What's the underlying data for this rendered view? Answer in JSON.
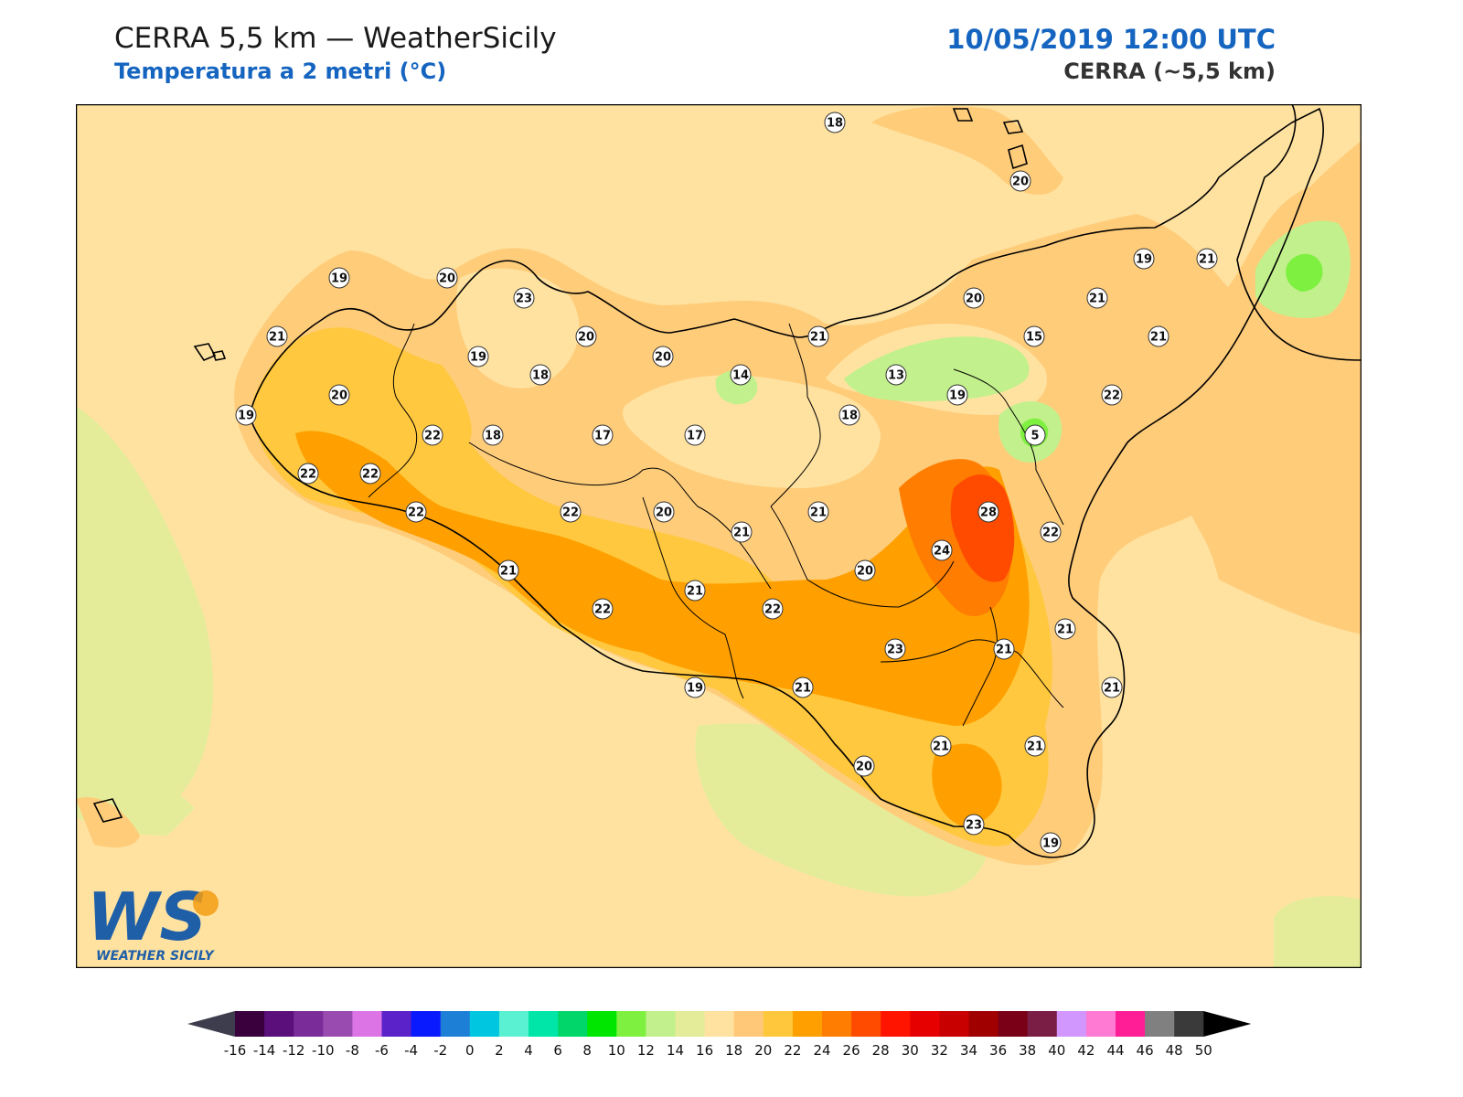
{
  "header": {
    "title": "CERRA 5,5 km — WeatherSicily",
    "subtitle": "Temperatura a 2 metri (°C)",
    "datetime": "10/05/2019 12:00 UTC",
    "model": "CERRA (~5,5 km)"
  },
  "logo": {
    "letters": "WS",
    "name": "WEATHER SICILY",
    "colors": {
      "w": "#1f5fa8",
      "s": "#f39c12",
      "text": "#1f5fa8"
    }
  },
  "colorbar": {
    "ticks": [
      "-16",
      "-14",
      "-12",
      "-10",
      "-8",
      "-6",
      "-4",
      "-2",
      "0",
      "2",
      "4",
      "6",
      "8",
      "10",
      "12",
      "14",
      "16",
      "18",
      "20",
      "22",
      "24",
      "26",
      "28",
      "30",
      "32",
      "34",
      "36",
      "38",
      "40",
      "42",
      "44",
      "46",
      "48",
      "50"
    ],
    "under_color": "#3d3d4d",
    "over_color": "#000000",
    "colors": [
      "#3a003e",
      "#5a0f7a",
      "#7a2c99",
      "#9a4bb0",
      "#dc74e6",
      "#5a22c8",
      "#0a1aff",
      "#1e7fd6",
      "#00c6e0",
      "#5af0d2",
      "#00e6a8",
      "#00d66a",
      "#00e600",
      "#7ef040",
      "#c2f08c",
      "#e4ec9a",
      "#ffe1a0",
      "#ffc878",
      "#ffc83c",
      "#ffa000",
      "#ff7d00",
      "#ff4b00",
      "#ff1400",
      "#e60000",
      "#c80000",
      "#a00000",
      "#7a0018",
      "#7a1e46",
      "#d296ff",
      "#ff7ad2",
      "#ff1e96",
      "#808080",
      "#3a3a3a"
    ]
  },
  "map": {
    "colors": {
      "sea": "#ffe2a0",
      "sea_cool": "#e4ec9a",
      "t18": "#ffe2a0",
      "t20": "#ffcc7a",
      "t22": "#ffc83e",
      "t24": "#ffa000",
      "t26": "#ff7d00",
      "t28": "#ff4b00",
      "t12": "#c2f08c",
      "t10": "#7ef040",
      "border": "#000000"
    },
    "stations": [
      {
        "v": "18"
      },
      {
        "v": "20"
      },
      {
        "v": "19"
      },
      {
        "v": "20"
      },
      {
        "v": "23"
      },
      {
        "v": "21"
      },
      {
        "v": "20"
      },
      {
        "v": "21"
      },
      {
        "v": "19"
      },
      {
        "v": "21"
      },
      {
        "v": "20"
      },
      {
        "v": "18"
      },
      {
        "v": "20"
      },
      {
        "v": "20"
      },
      {
        "v": "21"
      },
      {
        "v": "15"
      },
      {
        "v": "21"
      },
      {
        "v": "14"
      },
      {
        "v": "13"
      },
      {
        "v": "19"
      },
      {
        "v": "22"
      },
      {
        "v": "18"
      },
      {
        "v": "19"
      },
      {
        "v": "17"
      },
      {
        "v": "19"
      },
      {
        "v": "18"
      },
      {
        "v": "17"
      },
      {
        "v": "22"
      },
      {
        "v": "5"
      },
      {
        "v": "22"
      },
      {
        "v": "22"
      },
      {
        "v": "22"
      },
      {
        "v": "22"
      },
      {
        "v": "20"
      },
      {
        "v": "21"
      },
      {
        "v": "21"
      },
      {
        "v": "28"
      },
      {
        "v": "22"
      },
      {
        "v": "24"
      },
      {
        "v": "21"
      },
      {
        "v": "20"
      },
      {
        "v": "21"
      },
      {
        "v": "22"
      },
      {
        "v": "22"
      },
      {
        "v": "21"
      },
      {
        "v": "23"
      },
      {
        "v": "21"
      },
      {
        "v": "21"
      },
      {
        "v": "21"
      },
      {
        "v": "19"
      },
      {
        "v": "20"
      },
      {
        "v": "21"
      },
      {
        "v": "23"
      },
      {
        "v": "21"
      },
      {
        "v": "19"
      }
    ]
  }
}
